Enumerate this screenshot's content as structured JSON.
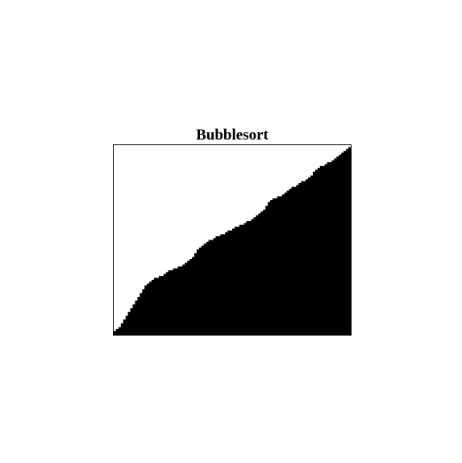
{
  "chart_data": {
    "type": "bar",
    "title": "Bubblesort",
    "xlabel": "",
    "ylabel": "",
    "xlim": [
      0,
      100
    ],
    "ylim": [
      0,
      100
    ],
    "grid": false,
    "colors": {
      "bar": "#000000",
      "background": "#ffffff",
      "frame": "#000000"
    },
    "values": [
      2,
      3,
      4,
      6,
      8,
      10,
      12,
      14,
      16,
      18,
      20,
      22,
      24,
      26,
      27,
      28,
      29,
      30,
      30,
      31,
      31,
      32,
      33,
      34,
      34,
      35,
      35,
      36,
      36,
      37,
      38,
      39,
      40,
      41,
      43,
      45,
      46,
      47,
      48,
      49,
      50,
      50,
      51,
      52,
      52,
      53,
      53,
      54,
      55,
      55,
      56,
      57,
      57,
      58,
      58,
      59,
      60,
      60,
      61,
      62,
      63,
      64,
      65,
      66,
      68,
      70,
      71,
      72,
      72,
      73,
      73,
      74,
      75,
      76,
      77,
      78,
      78,
      79,
      80,
      81,
      81,
      82,
      83,
      84,
      86,
      87,
      88,
      89,
      89,
      90,
      91,
      91,
      92,
      93,
      94,
      95,
      96,
      97,
      98,
      99
    ]
  }
}
